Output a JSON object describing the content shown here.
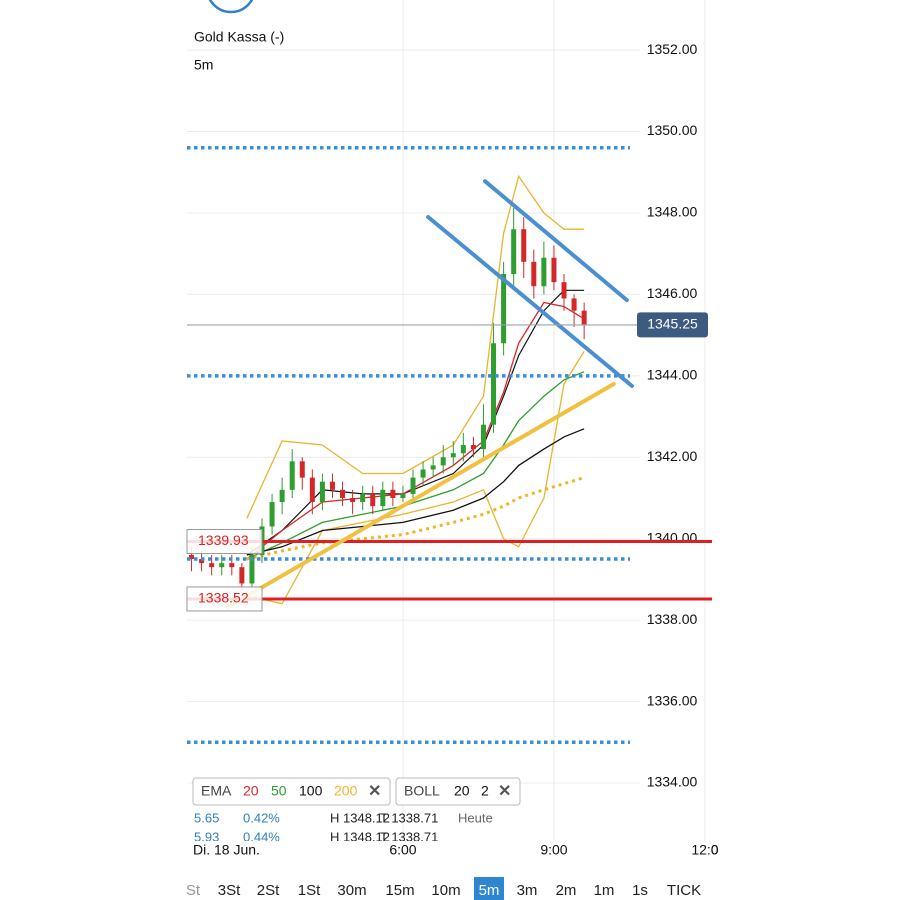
{
  "header": {
    "title": "Gold Kassa (-)",
    "interval": "5m"
  },
  "chart_data": {
    "type": "candlestick",
    "x": [
      1.8,
      2.0,
      2.2,
      2.4,
      2.6,
      2.8,
      3.0,
      3.2,
      3.4,
      3.6,
      3.8,
      4.0,
      4.2,
      4.4,
      4.6,
      4.8,
      5.0,
      5.2,
      5.4,
      5.6,
      5.8,
      6.0,
      6.2,
      6.4,
      6.6,
      6.8,
      7.0,
      7.2,
      7.4,
      7.6,
      7.8,
      8.0,
      8.2,
      8.4,
      8.6,
      8.8,
      9.0,
      9.2,
      9.4,
      9.6
    ],
    "open": [
      1339.6,
      1339.5,
      1339.4,
      1339.3,
      1339.4,
      1339.3,
      1338.9,
      1339.6,
      1340.3,
      1340.9,
      1341.2,
      1341.9,
      1341.5,
      1340.9,
      1341.4,
      1341.2,
      1341.0,
      1340.9,
      1341.1,
      1340.8,
      1341.2,
      1341.0,
      1341.1,
      1341.5,
      1341.7,
      1341.8,
      1342.0,
      1342.1,
      1342.3,
      1342.2,
      1342.8,
      1344.8,
      1346.5,
      1347.6,
      1346.8,
      1346.2,
      1346.9,
      1346.3,
      1345.9,
      1345.6
    ],
    "high": [
      1339.8,
      1339.7,
      1339.6,
      1339.6,
      1339.6,
      1339.4,
      1339.8,
      1340.5,
      1341.1,
      1341.5,
      1342.2,
      1342.0,
      1341.7,
      1341.6,
      1341.6,
      1341.4,
      1341.2,
      1341.3,
      1341.3,
      1341.4,
      1341.4,
      1341.3,
      1341.7,
      1341.9,
      1342.0,
      1342.3,
      1342.4,
      1342.6,
      1342.5,
      1343.3,
      1345.3,
      1346.8,
      1348.12,
      1347.9,
      1347.1,
      1347.3,
      1347.2,
      1346.5,
      1346.0,
      1345.8
    ],
    "low": [
      1339.2,
      1339.2,
      1339.1,
      1339.1,
      1339.1,
      1338.71,
      1338.8,
      1339.4,
      1340.1,
      1340.6,
      1341.0,
      1341.2,
      1340.6,
      1340.7,
      1341.0,
      1340.8,
      1340.6,
      1340.7,
      1340.6,
      1340.7,
      1340.8,
      1340.9,
      1341.0,
      1341.3,
      1341.5,
      1341.6,
      1341.8,
      1341.9,
      1342.0,
      1342.0,
      1342.6,
      1344.5,
      1346.2,
      1346.4,
      1345.9,
      1346.0,
      1346.1,
      1345.6,
      1345.2,
      1344.9
    ],
    "close": [
      1339.5,
      1339.4,
      1339.3,
      1339.4,
      1339.3,
      1338.9,
      1339.6,
      1340.3,
      1340.9,
      1341.2,
      1341.9,
      1341.5,
      1340.9,
      1341.4,
      1341.2,
      1341.0,
      1340.9,
      1341.1,
      1340.8,
      1341.2,
      1341.0,
      1341.1,
      1341.5,
      1341.7,
      1341.8,
      1342.0,
      1342.1,
      1342.3,
      1342.2,
      1342.8,
      1344.8,
      1346.5,
      1347.6,
      1346.8,
      1346.2,
      1346.9,
      1346.3,
      1345.9,
      1345.6,
      1345.25
    ],
    "up_color": "#2e9e2e",
    "down_color": "#d62728",
    "xlim": [
      1.71,
      12.14
    ],
    "xticks": [
      {
        "value": 6,
        "label": "6:00"
      },
      {
        "value": 9,
        "label": "9:00"
      },
      {
        "value": 12,
        "label": "12:0"
      }
    ],
    "ylim": [
      1332.6,
      1353.23
    ],
    "yticks": [
      {
        "value": 1334,
        "label": "1334.00"
      },
      {
        "value": 1336,
        "label": "1336.00"
      },
      {
        "value": 1338,
        "label": "1338.00"
      },
      {
        "value": 1340,
        "label": "1340.00"
      },
      {
        "value": 1342,
        "label": "1342.00"
      },
      {
        "value": 1344,
        "label": "1344.00"
      },
      {
        "value": 1346,
        "label": "1346.00"
      },
      {
        "value": 1348,
        "label": "1348.00"
      },
      {
        "value": 1350,
        "label": "1350.00"
      },
      {
        "value": 1352,
        "label": "1352.00"
      }
    ],
    "grid": true,
    "date_label": "Di. 18 Jun.",
    "indicator_x": [
      2.9,
      3.6,
      4.4,
      5.2,
      6.0,
      7.0,
      7.6,
      8.0,
      8.3,
      8.8,
      9.2,
      9.6
    ],
    "ema": {
      "label": "EMA",
      "series": [
        {
          "name": "20",
          "color": "#d62728",
          "values": [
            1339.5,
            1340.2,
            1340.9,
            1341.0,
            1341.1,
            1341.8,
            1342.4,
            1343.6,
            1344.8,
            1345.8,
            1345.7,
            1345.4
          ]
        },
        {
          "name": "50",
          "color": "#2e9e2e",
          "values": [
            1339.5,
            1339.9,
            1340.4,
            1340.6,
            1340.8,
            1341.2,
            1341.6,
            1342.3,
            1342.9,
            1343.5,
            1343.9,
            1344.1
          ]
        },
        {
          "name": "100",
          "color": "#111111",
          "values": [
            1339.6,
            1339.8,
            1340.2,
            1340.3,
            1340.4,
            1340.7,
            1341.0,
            1341.4,
            1341.8,
            1342.2,
            1342.5,
            1342.7
          ]
        },
        {
          "name": "200",
          "color": "#f0b429",
          "dotted": true,
          "values": [
            1339.5,
            1339.7,
            1339.9,
            1340.0,
            1340.1,
            1340.4,
            1340.6,
            1340.8,
            1341.0,
            1341.2,
            1341.35,
            1341.5
          ]
        }
      ]
    },
    "boll": {
      "label": "BOLL",
      "period": 20,
      "deviation": 2,
      "band_color": "#e8b530",
      "mid_color": "#111111",
      "upper": [
        1340.5,
        1342.4,
        1342.3,
        1341.6,
        1341.6,
        1342.3,
        1343.5,
        1347.5,
        1348.9,
        1348.0,
        1347.6,
        1347.6
      ],
      "mid": [
        1339.6,
        1340.2,
        1341.2,
        1341.1,
        1341.1,
        1341.6,
        1342.3,
        1343.5,
        1344.5,
        1345.6,
        1346.1,
        1346.1
      ],
      "lower": [
        1338.6,
        1338.4,
        1340.2,
        1340.4,
        1340.6,
        1340.9,
        1341.2,
        1340.0,
        1339.8,
        1341.0,
        1343.8,
        1344.6
      ]
    },
    "levels": [
      {
        "value": 1349.6,
        "color": "#3a8fd6",
        "style": "dotted"
      },
      {
        "value": 1344.0,
        "color": "#3a8fd6",
        "style": "dotted"
      },
      {
        "value": 1339.5,
        "color": "#3a8fd6",
        "style": "dotted"
      },
      {
        "value": 1335.0,
        "color": "#3a8fd6",
        "style": "dotted"
      },
      {
        "value": 1339.93,
        "color": "#e02020",
        "style": "solid",
        "tag": true
      },
      {
        "value": 1338.52,
        "color": "#e02020",
        "style": "solid",
        "tag": true
      }
    ],
    "trendlines": [
      {
        "x": [
          7.63,
          10.45
        ],
        "y": [
          1348.78,
          1345.86
        ],
        "color": "#4a90d0"
      },
      {
        "x": [
          6.5,
          10.55
        ],
        "y": [
          1347.9,
          1343.75
        ],
        "color": "#4a90d0"
      },
      {
        "x": [
          2.52,
          10.19
        ],
        "y": [
          1338.32,
          1343.8
        ],
        "color": "#f0c040"
      }
    ]
  },
  "info": {
    "rows": [
      [
        "5.65",
        "0.42%",
        "H 1348.12",
        "T 1338.71",
        "Heute"
      ],
      [
        "5.93",
        "0.44%",
        "H 1348.12",
        "T 1338.71"
      ]
    ]
  },
  "timeframes": {
    "items": [
      "St",
      "3St",
      "2St",
      "1St",
      "30m",
      "15m",
      "10m",
      "5m",
      "3m",
      "2m",
      "1m",
      "1s",
      "TICK"
    ],
    "active_index": 7
  }
}
